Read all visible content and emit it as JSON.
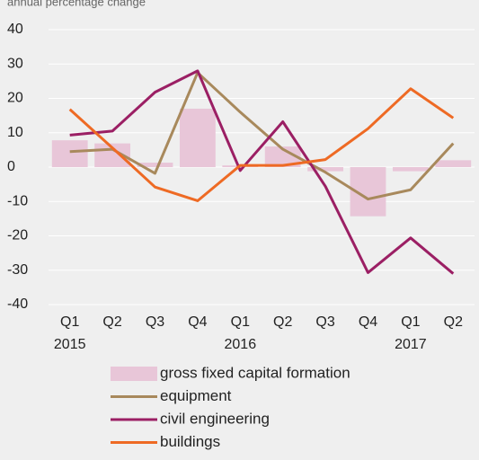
{
  "chart_data": {
    "type": "bar",
    "title": "annual percentage change",
    "categories": [
      "Q1",
      "Q2",
      "Q3",
      "Q4",
      "Q1",
      "Q2",
      "Q3",
      "Q4",
      "Q1",
      "Q2"
    ],
    "years": [
      "2015",
      null,
      null,
      null,
      "2016",
      null,
      null,
      null,
      "2017",
      null
    ],
    "series": [
      {
        "name": "gross fixed capital formation",
        "type": "bar",
        "color": "#e8c6d8",
        "values": [
          7.8,
          6.9,
          1.3,
          17,
          0.5,
          6,
          -1.2,
          -14.3,
          -1.2,
          2
        ]
      },
      {
        "name": "equipment",
        "type": "line",
        "color": "#a8895c",
        "values": [
          4.5,
          5.2,
          -1.8,
          27.5,
          16,
          5.2,
          -1.5,
          -9.3,
          -6.6,
          6.9
        ]
      },
      {
        "name": "civil engineering",
        "type": "line",
        "color": "#9b1f64",
        "values": [
          9.3,
          10.5,
          21.8,
          28,
          -1,
          13.2,
          -5.6,
          -30.7,
          -20.6,
          -31
        ]
      },
      {
        "name": "buildings",
        "type": "line",
        "color": "#ee6a24",
        "values": [
          16.8,
          5.6,
          -5.8,
          -9.8,
          0.5,
          0.5,
          2.2,
          11.2,
          22.8,
          14.3
        ]
      }
    ],
    "ylim": [
      -40,
      40
    ],
    "yticks": [
      -40,
      -30,
      -20,
      -10,
      0,
      10,
      20,
      30,
      40
    ],
    "grid": true
  }
}
